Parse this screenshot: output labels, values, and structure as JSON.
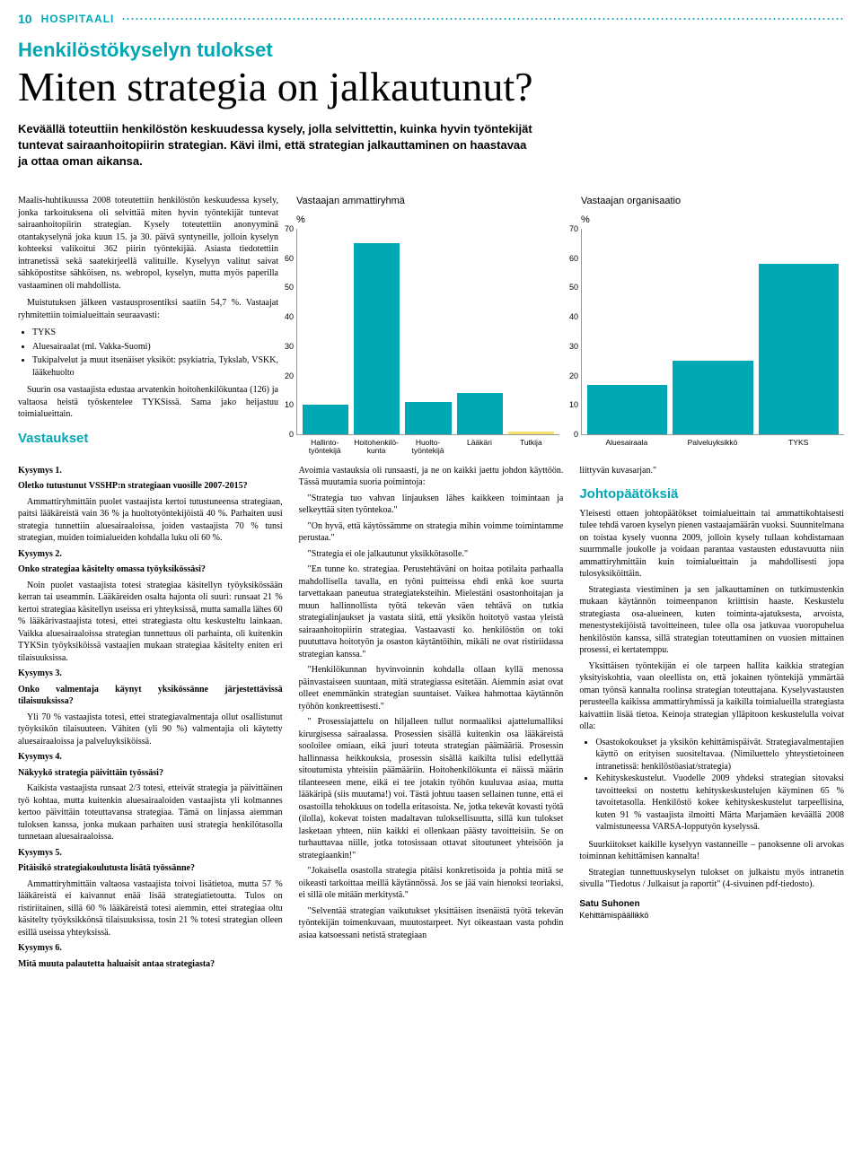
{
  "header": {
    "page_number": "10",
    "brand": "HOSPITAALI"
  },
  "kicker": "Henkilöstökyselyn tulokset",
  "headline": "Miten strategia on jalkautunut?",
  "lead": "Keväällä toteuttiin henkilöstön keskuudessa kysely, jolla selvittettin, kuinka hyvin työntekijät tuntevat sairaanhoitopiirin strategian. Kävi ilmi, että strategian jalkauttaminen on haastavaa ja ottaa oman aikansa.",
  "intro": {
    "p1": "Maalis-huhtikuussa 2008 toteutettiin henkilöstön keskuudessa kysely, jonka tarkoituksena oli selvittää miten hyvin työntekijät tuntevat sairaanhoitopiirin strategian. Kysely toteutettiin anonyyminä otantakyselynä joka kuun 15. ja 30. päivä syntyneille, jolloin kyselyn kohteeksi valikoitui 362 piirin työntekijää. Asiasta tiedotettiin intranetissä sekä saatekirjeellä valituille. Kyselyyn valitut saivat sähköpostitse sähköisen, ns. webropol, kyselyn, mutta myös paperilla vastaaminen oli mahdollista.",
    "p2": "Muistutuksen jälkeen vastausprosentiksi saatiin 54,7 %. Vastaajat ryhmitettiin toimialueittain seuraavasti:",
    "bullets": [
      "TYKS",
      "Aluesairaalat (ml. Vakka-Suomi)",
      "Tukipalvelut ja muut itsenäiset yksiköt: psykiatria, Tykslab, VSKK, lääkehuolto"
    ],
    "p3": "Suurin osa vastaajista edustaa arvatenkin hoitohenkilökuntaa (126) ja valtaosa heistä työskentelee TYKSissä. Sama jako heijastuu toimialueittain."
  },
  "chart1": {
    "title": "Vastaajan ammattiryhmä",
    "ylabel": "%",
    "ylim_top": 70,
    "ytick_step": 10,
    "categories": [
      "Hallinto-työntekijä",
      "Hoitohenkilö-kunta",
      "Huolto-työntekijä",
      "Lääkäri",
      "Tutkija"
    ],
    "values": [
      10,
      65,
      11,
      14,
      1
    ],
    "colors": [
      "#00a7b5",
      "#00a7b5",
      "#00a7b5",
      "#00a7b5",
      "#f9e26b"
    ]
  },
  "chart2": {
    "title": "Vastaajan organisaatio",
    "ylabel": "%",
    "ylim_top": 70,
    "ytick_step": 10,
    "categories": [
      "Aluesairaala",
      "Palveluyksikkö",
      "TYKS"
    ],
    "values": [
      17,
      25,
      58
    ],
    "colors": [
      "#00a7b5",
      "#00a7b5",
      "#00a7b5"
    ]
  },
  "vastaukset_h": "Vastaukset",
  "col1": {
    "k1_label": "Kysymys 1.",
    "k1_q": "Oletko tutustunut VSSHP:n strategiaan vuosille 2007-2015?",
    "k1_a": "Ammattiryhmittäin puolet vastaajista kertoi tutustuneensa strategiaan, paitsi lääkäreistä vain 36 % ja huoltotyöntekijöistä 40 %. Parhaiten uusi strategia tunnettiin aluesairaaloissa, joiden vastaajista 70 % tunsi strategian, muiden toimialueiden kohdalla luku oli 60 %.",
    "k2_label": "Kysymys 2.",
    "k2_q": "Onko strategiaa käsitelty omassa työyksikössäsi?",
    "k2_a": "Noin puolet vastaajista totesi strategiaa käsitellyn työyksikössään kerran tai useammin. Lääkäreiden osalta hajonta oli suuri: runsaat 21 % kertoi strategiaa käsitellyn useissa eri yhteyksissä, mutta samalla lähes 60 % lääkärivastaajista totesi, ettei strategiasta oltu keskusteltu lainkaan. Vaikka aluesairaaloissa strategian tunnettuus oli parhainta, oli kuitenkin TYKSin työyksiköissä vastaajien mukaan strategiaa käsitelty eniten eri tilaisuuksissa.",
    "k3_label": "Kysymys 3.",
    "k3_q": "Onko valmentaja käynyt yksikössänne järjestettävissä tilaisuuksissa?",
    "k3_a": "Yli 70 % vastaajista totesi, ettei strategiavalmentaja ollut osallistunut työyksikön tilaisuuteen. Vähiten (yli 90 %) valmentajia oli käytetty aluesairaaloissa ja palveluyksiköissä.",
    "k4_label": "Kysymys 4.",
    "k4_q": "Näkyykö strategia päivittäin työssäsi?",
    "k4_a": "Kaikista vastaajista runsaat 2/3 totesi, etteivät strategia ja päivittäinen työ kohtaa, mutta kuitenkin aluesairaaloiden vastaajista yli kolmannes kertoo päivittäin toteuttavansa strategiaa. Tämä on linjassa aiemman tuloksen kanssa, jonka mukaan parhaiten uusi strategia henkilötasolla tunnetaan aluesairaaloissa.",
    "k5_label": "Kysymys 5.",
    "k5_q": "Pitäisikö strategiakoulutusta lisätä työssänne?",
    "k5_a": "Ammattiryhmittäin valtaosa vastaajista toivoi lisätietoa, mutta 57 % lääkäreistä ei kaivannut enää lisää strategiatietoutta. Tulos on ristiriitainen, sillä 60 % lääkäreistä totesi aiemmin, ettei strategiaa oltu käsitelty työyksikkönsä tilaisuuksissa, tosin 21 % totesi strategian olleen esillä useissa yhteyksissä.",
    "k6_label": "Kysymys 6.",
    "k6_q": "Mitä muuta palautetta haluaisit antaa strategiasta?"
  },
  "col2": {
    "p1": "Avoimia vastauksia oli runsaasti, ja ne on kaikki jaettu johdon käyttöön. Tässä muutamia suoria poimintoja:",
    "q1": "\"Strategia tuo vahvan linjauksen lähes kaikkeen toimintaan ja selkeyttää siten työntekoa.\"",
    "q2": "\"On hyvä, että käytössämme on strategia mihin voimme toimintamme perustaa.\"",
    "q3": "\"Strategia ei ole jalkautunut yksikkötasolle.\"",
    "q4": "\"En tunne ko. strategiaa. Perustehtäväni on hoitaa potilaita parhaalla mahdollisella tavalla, en työni puitteissa ehdi enkä koe suurta tarvettakaan paneutua strategiateksteihin. Mielestäni osastonhoitajan ja muun hallinnollista työtä tekevän väen tehtävä on tutkia strategialinjaukset ja vastata siitä, että yksikön hoitotyö vastaa yleistä sairaanhoitopiirin strategiaa. Vastaavasti ko. henkilöstön on toki puututtava hoitotyön ja osaston käytäntöihin, mikäli ne ovat ristiriidassa strategian kanssa.\"",
    "q5": "\"Henkilökunnan hyvinvoinnin kohdalla ollaan kyllä menossa päinvastaiseen suuntaan, mitä strategiassa esitetään. Aiemmin asiat ovat olleet enemmänkin strategian suuntaiset. Vaikea hahmottaa käytännön työhön konkreettisesti.\"",
    "q6": "\" Prosessiajattelu on hiljalleen tullut normaaliksi ajattelumalliksi kirurgisessa sairaalassa. Prosessien sisällä kuitenkin osa lääkäreistä sooloilee omiaan, eikä juuri toteuta strategian päämääriä. Prosessin hallinnassa heikkouksia, prosessin sisällä kaikilta tulisi edellyttää sitoutumista yhteisiin päämääriin. Hoitohenkilökunta ei näissä määrin tilanteeseen mene, eikä ei tee jotakin työhön kuuluvaa asiaa, mutta lääkäripä (siis muutama!) voi. Tästä johtuu taasen sellainen tunne, että ei osastoilla tehokkuus on todella eritasoista. Ne, jotka tekevät kovasti työtä (ilolla), kokevat toisten madaltavan tuloksellisuutta, sillä kun tulokset lasketaan yhteen, niin kaikki ei ollenkaan päästy tavoitteisiin. Se on turhauttavaa niille, jotka totosissaan ottavat sitoutuneet yhteisöön ja strategiaankin!\"",
    "q7": "\"Jokaisella osastolla strategia pitäisi konkretisoida ja pohtia mitä se oikeasti tarkoittaa meillä käytännössä. Jos se jää vain hienoksi teoriaksi, ei sillä ole mitään merkitystä.\"",
    "q8": "\"Selventää strategian vaikutukset yksittäisen itsenäistä työtä tekevän työntekijän toimenkuvaan, muutostarpeet. Nyt oikeastaan vasta pohdin asiaa katsoessani netistä strategiaan"
  },
  "col3": {
    "p1_tail": "liittyvän kuvasarjan.\"",
    "h": "Johtopäätöksiä",
    "p2": "Yleisesti ottaen johtopäätökset toimialueittain tai ammattikohtaisesti tulee tehdä varoen kyselyn pienen vastaajamäärän vuoksi. Suunnitelmana on toistaa kysely vuonna 2009, jolloin kysely tullaan kohdistamaan suurmmalle joukolle ja voidaan parantaa vastausten edustavuutta niin ammattiryhmittäin kuin toimialueittain ja mahdollisesti jopa tulosyksiköittäin.",
    "p3": "Strategiasta viestiminen ja sen jalkauttaminen on tutkimustenkin mukaan käytännön toimeenpanon kriittisin haaste. Keskustelu strategiasta osa-alueineen, kuten toiminta-ajatuksesta, arvoista, menestystekijöistä tavoitteineen, tulee olla osa jatkuvaa vuoropuhelua henkilöstön kanssa, sillä strategian toteuttaminen on vuosien mittainen prosessi, ei kertatemppu.",
    "p4": "Yksittäisen työntekijän ei ole tarpeen hallita kaikkia strategian yksityiskohtia, vaan oleellista on, että jokainen työntekijä ymmärtää oman työnsä kannalta roolinsa strategian toteuttajana. Kyselyvastausten perusteella kaikissa ammattiryhmissä ja kaikilla toimialueilla strategiasta kaivattiin lisää tietoa. Keinoja strategian ylläpitoon keskustelulla voivat olla:",
    "bullets": [
      "Osastokokoukset ja yksikön kehittämispäivät. Strategiavalmentajien käyttö on erityisen suositeltavaa. (Nimiluettelo yhteystietoineen intranetissä: henkilöstöasiat/strategia)",
      "Kehityskeskustelut. Vuodelle 2009 yhdeksi strategian sitovaksi tavoitteeksi on nostettu kehityskeskustelujen käyminen 65 % tavoitetasolla. Henkilöstö kokee kehityskeskustelut tarpeellisina, kuten 91 % vastaajista ilmoitti Märta Marjamäen keväällä 2008 valmistuneessa VARSA-lopputyön kyselyssä."
    ],
    "p5": "Suurkiitokset kaikille kyselyyn vastanneille – panoksenne oli arvokas toiminnan kehittämisen kannalta!",
    "p6": "Strategian tunnettuuskyselyn tulokset on julkaistu myös intranetin sivulla \"Tiedotus / Julkaisut ja raportit\" (4-sivuinen pdf-tiedosto).",
    "byline_name": "Satu Suhonen",
    "byline_role": "Kehittämispäällikkö"
  }
}
